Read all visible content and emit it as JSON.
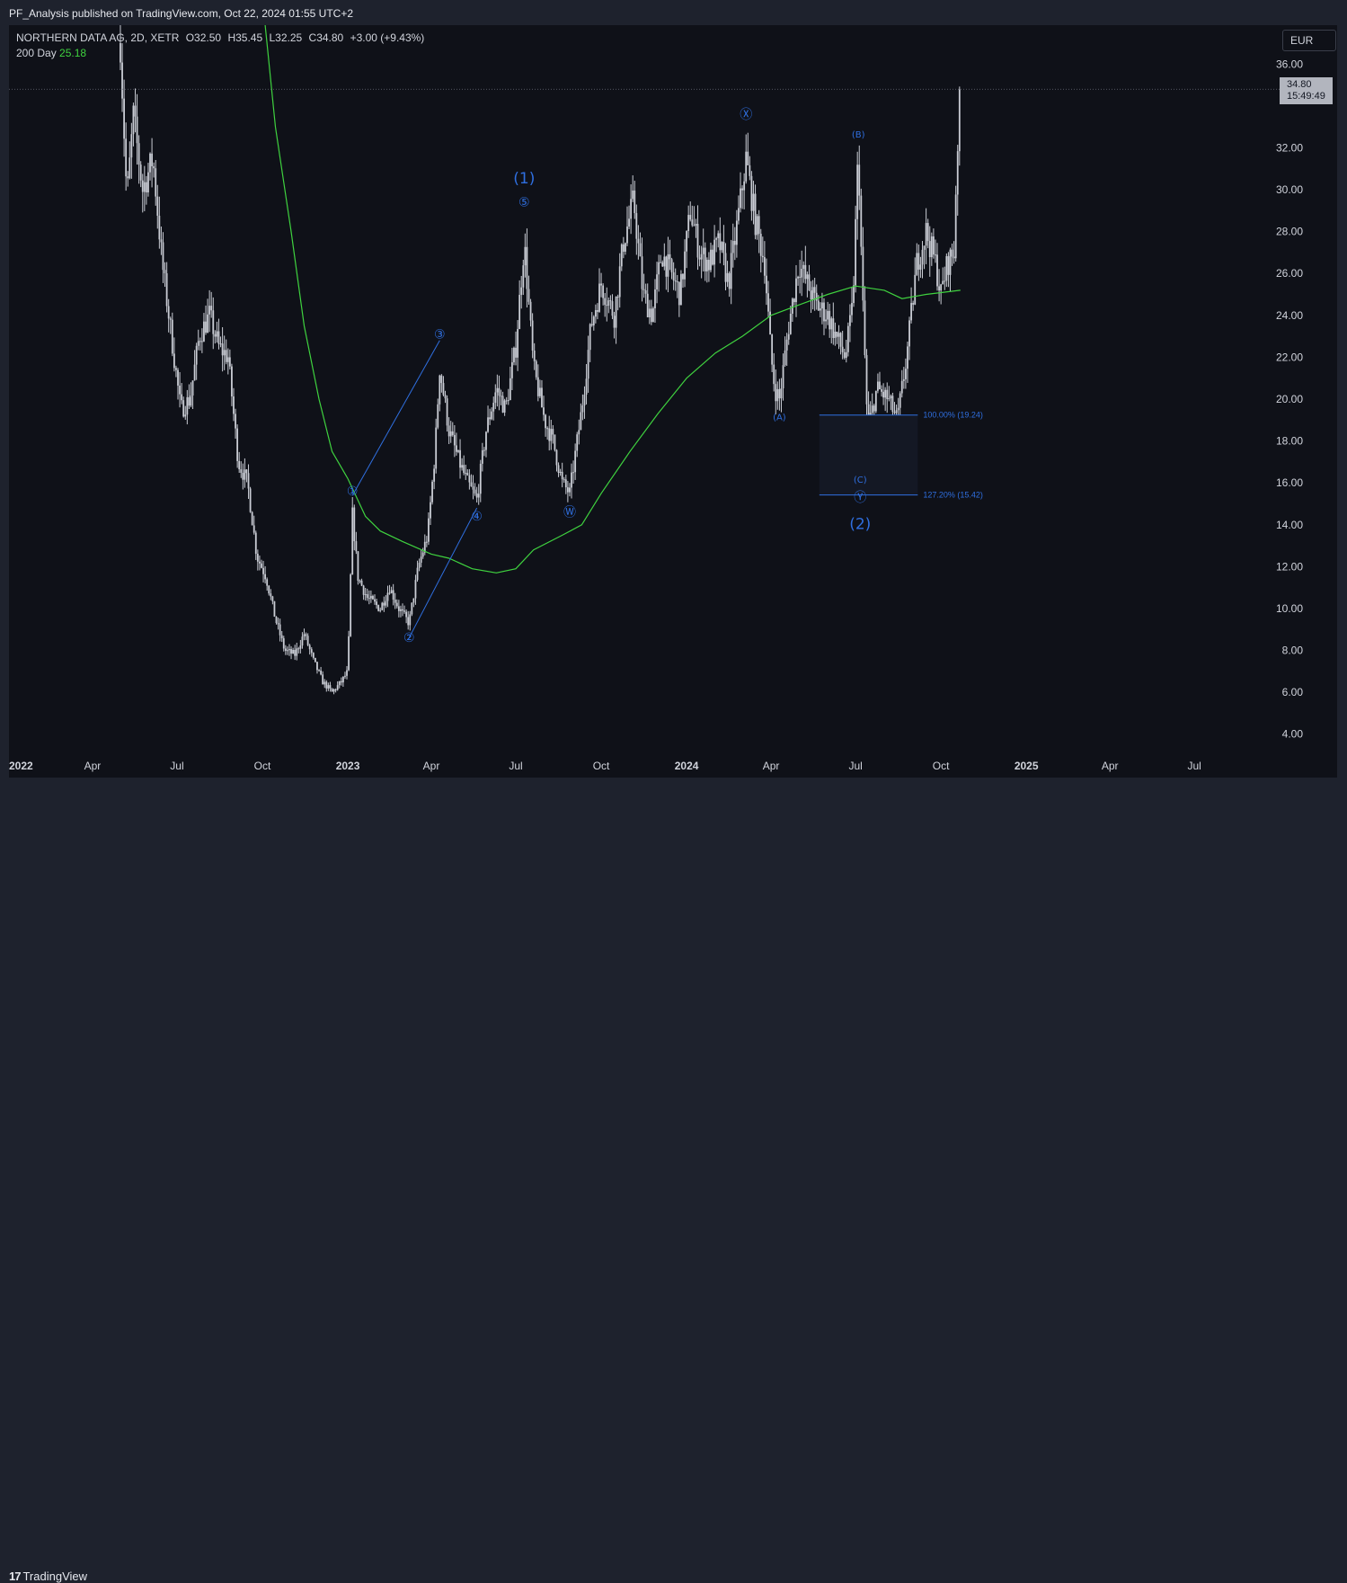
{
  "header": {
    "publisher_line": "PF_Analysis published on TradingView.com, Oct 22, 2024 01:55 UTC+2"
  },
  "legend": {
    "symbol": "NORTHERN DATA AG, 2D, XETR",
    "open": "O32.50",
    "high": "H35.45",
    "low": "L32.25",
    "close": "C34.80",
    "change": "+3.00 (+9.43%)",
    "ma_label": "200 Day",
    "ma_value": "25.18"
  },
  "currency": "EUR",
  "last_price": {
    "price": "34.80",
    "countdown": "15:49:49"
  },
  "footer": {
    "brand": "TradingView",
    "logo_glyph": "17"
  },
  "colors": {
    "background": "#0f1118",
    "candles": "#c9ccd4",
    "ma": "#3fd23f",
    "waves": "#2f6fe0",
    "price_tag": "#b2b5be"
  },
  "chart_data": {
    "type": "candlestick",
    "symbol": "NORTHERN DATA AG",
    "interval": "2D",
    "exchange": "XETR",
    "currency": "EUR",
    "ylim": [
      3,
      37.6
    ],
    "xlim": [
      "2022-01-01",
      "2025-09-25"
    ],
    "y_ticks": [
      "4.00",
      "6.00",
      "8.00",
      "10.00",
      "12.00",
      "14.00",
      "16.00",
      "18.00",
      "20.00",
      "22.00",
      "24.00",
      "26.00",
      "28.00",
      "30.00",
      "32.00",
      "36.00"
    ],
    "x_ticks": [
      {
        "label": "2022",
        "date": "2022-01-01"
      },
      {
        "label": "Apr",
        "date": "2022-04-01"
      },
      {
        "label": "Jul",
        "date": "2022-07-01"
      },
      {
        "label": "Oct",
        "date": "2022-10-01"
      },
      {
        "label": "2023",
        "date": "2023-01-01"
      },
      {
        "label": "Apr",
        "date": "2023-04-01"
      },
      {
        "label": "Jul",
        "date": "2023-07-01"
      },
      {
        "label": "Oct",
        "date": "2023-10-01"
      },
      {
        "label": "2024",
        "date": "2024-01-01"
      },
      {
        "label": "Apr",
        "date": "2024-04-01"
      },
      {
        "label": "Jul",
        "date": "2024-07-01"
      },
      {
        "label": "Oct",
        "date": "2024-10-01"
      },
      {
        "label": "2025",
        "date": "2025-01-01"
      },
      {
        "label": "Apr",
        "date": "2025-04-01"
      },
      {
        "label": "Jul",
        "date": "2025-07-01"
      }
    ],
    "price_path": [
      [
        "2022-05-01",
        37.0
      ],
      [
        "2022-05-08",
        29.5
      ],
      [
        "2022-05-15",
        33.5
      ],
      [
        "2022-05-25",
        30.0
      ],
      [
        "2022-06-05",
        31.5
      ],
      [
        "2022-06-15",
        26.5
      ],
      [
        "2022-06-25",
        23.0
      ],
      [
        "2022-07-05",
        19.5
      ],
      [
        "2022-07-15",
        20.0
      ],
      [
        "2022-07-25",
        23.0
      ],
      [
        "2022-08-05",
        24.0
      ],
      [
        "2022-08-15",
        22.5
      ],
      [
        "2022-08-25",
        22.0
      ],
      [
        "2022-09-05",
        17.0
      ],
      [
        "2022-09-15",
        16.0
      ],
      [
        "2022-09-25",
        12.5
      ],
      [
        "2022-10-05",
        11.5
      ],
      [
        "2022-10-15",
        9.5
      ],
      [
        "2022-10-25",
        8.0
      ],
      [
        "2022-11-05",
        7.8
      ],
      [
        "2022-11-15",
        8.8
      ],
      [
        "2022-11-25",
        7.5
      ],
      [
        "2022-12-05",
        6.5
      ],
      [
        "2022-12-15",
        6.0
      ],
      [
        "2022-12-25",
        6.5
      ],
      [
        "2023-01-01",
        7.0
      ],
      [
        "2023-01-06",
        14.5
      ],
      [
        "2023-01-12",
        11.5
      ],
      [
        "2023-01-22",
        10.5
      ],
      [
        "2023-02-05",
        10.0
      ],
      [
        "2023-02-15",
        11.0
      ],
      [
        "2023-02-25",
        10.0
      ],
      [
        "2023-03-08",
        9.3
      ],
      [
        "2023-03-18",
        12.0
      ],
      [
        "2023-03-28",
        13.5
      ],
      [
        "2023-04-05",
        17.5
      ],
      [
        "2023-04-10",
        21.5
      ],
      [
        "2023-04-20",
        18.5
      ],
      [
        "2023-05-01",
        17.0
      ],
      [
        "2023-05-10",
        16.0
      ],
      [
        "2023-05-20",
        15.2
      ],
      [
        "2023-05-30",
        18.5
      ],
      [
        "2023-06-10",
        20.5
      ],
      [
        "2023-06-20",
        19.5
      ],
      [
        "2023-07-01",
        22.5
      ],
      [
        "2023-07-10",
        27.5
      ],
      [
        "2023-07-20",
        21.5
      ],
      [
        "2023-08-01",
        19.0
      ],
      [
        "2023-08-10",
        18.0
      ],
      [
        "2023-08-20",
        16.0
      ],
      [
        "2023-08-28",
        15.5
      ],
      [
        "2023-09-10",
        19.5
      ],
      [
        "2023-09-20",
        23.5
      ],
      [
        "2023-10-01",
        25.5
      ],
      [
        "2023-10-15",
        24.0
      ],
      [
        "2023-10-25",
        27.5
      ],
      [
        "2023-11-05",
        29.5
      ],
      [
        "2023-11-15",
        25.0
      ],
      [
        "2023-11-25",
        24.0
      ],
      [
        "2023-12-05",
        27.0
      ],
      [
        "2023-12-15",
        26.0
      ],
      [
        "2023-12-25",
        25.0
      ],
      [
        "2024-01-05",
        29.0
      ],
      [
        "2024-01-15",
        27.0
      ],
      [
        "2024-01-25",
        26.5
      ],
      [
        "2024-02-05",
        27.5
      ],
      [
        "2024-02-15",
        25.5
      ],
      [
        "2024-02-25",
        28.5
      ],
      [
        "2024-03-05",
        31.5
      ],
      [
        "2024-03-15",
        28.5
      ],
      [
        "2024-03-25",
        26.5
      ],
      [
        "2024-04-01",
        22.0
      ],
      [
        "2024-04-05",
        20.5
      ],
      [
        "2024-04-10",
        20.0
      ],
      [
        "2024-04-20",
        23.5
      ],
      [
        "2024-05-01",
        26.5
      ],
      [
        "2024-05-10",
        25.5
      ],
      [
        "2024-05-20",
        24.5
      ],
      [
        "2024-06-01",
        24.0
      ],
      [
        "2024-06-10",
        23.0
      ],
      [
        "2024-06-20",
        22.0
      ],
      [
        "2024-06-28",
        24.5
      ],
      [
        "2024-07-04",
        32.0
      ],
      [
        "2024-07-08",
        25.5
      ],
      [
        "2024-07-14",
        18.5
      ],
      [
        "2024-07-24",
        20.5
      ],
      [
        "2024-08-05",
        20.0
      ],
      [
        "2024-08-15",
        19.0
      ],
      [
        "2024-08-25",
        22.0
      ],
      [
        "2024-09-05",
        26.5
      ],
      [
        "2024-09-15",
        28.0
      ],
      [
        "2024-09-25",
        26.5
      ],
      [
        "2024-10-01",
        25.0
      ],
      [
        "2024-10-08",
        26.5
      ],
      [
        "2024-10-15",
        27.0
      ],
      [
        "2024-10-18",
        31.5
      ],
      [
        "2024-10-22",
        34.8
      ]
    ],
    "moving_average": {
      "label": "200 Day",
      "last_value": 25.18,
      "points": [
        [
          "2022-09-30",
          40.0
        ],
        [
          "2022-10-15",
          33.0
        ],
        [
          "2022-11-01",
          28.0
        ],
        [
          "2022-11-15",
          23.5
        ],
        [
          "2022-12-01",
          20.0
        ],
        [
          "2022-12-15",
          17.5
        ],
        [
          "2023-01-01",
          16.2
        ],
        [
          "2023-01-20",
          14.4
        ],
        [
          "2023-02-05",
          13.7
        ],
        [
          "2023-03-01",
          13.2
        ],
        [
          "2023-04-01",
          12.6
        ],
        [
          "2023-04-20",
          12.4
        ],
        [
          "2023-05-15",
          11.9
        ],
        [
          "2023-06-10",
          11.7
        ],
        [
          "2023-07-01",
          11.9
        ],
        [
          "2023-07-20",
          12.8
        ],
        [
          "2023-08-20",
          13.5
        ],
        [
          "2023-09-10",
          14.0
        ],
        [
          "2023-10-01",
          15.5
        ],
        [
          "2023-11-01",
          17.5
        ],
        [
          "2023-12-01",
          19.3
        ],
        [
          "2024-01-01",
          21.0
        ],
        [
          "2024-02-01",
          22.2
        ],
        [
          "2024-03-01",
          23.0
        ],
        [
          "2024-04-01",
          24.0
        ],
        [
          "2024-05-01",
          24.5
        ],
        [
          "2024-06-01",
          25.0
        ],
        [
          "2024-07-01",
          25.4
        ],
        [
          "2024-08-01",
          25.2
        ],
        [
          "2024-08-20",
          24.8
        ],
        [
          "2024-09-15",
          25.0
        ],
        [
          "2024-10-22",
          25.2
        ]
      ]
    },
    "wave_labels": [
      {
        "text": "①",
        "date": "2023-01-06",
        "y": 15.4
      },
      {
        "text": "②",
        "date": "2023-03-08",
        "y": 8.4
      },
      {
        "text": "③",
        "date": "2023-04-10",
        "y": 22.9
      },
      {
        "text": "④",
        "date": "2023-05-20",
        "y": 14.2
      },
      {
        "text": "⑤",
        "date": "2023-07-10",
        "y": 29.2
      },
      {
        "text": "(1)",
        "date": "2023-07-10",
        "y": 30.3
      },
      {
        "text": "Ⓦ",
        "date": "2023-08-28",
        "y": 14.4
      },
      {
        "text": "Ⓧ",
        "date": "2024-03-05",
        "y": 33.4
      },
      {
        "text": "(A)",
        "date": "2024-04-10",
        "y": 19.0
      },
      {
        "text": "(B)",
        "date": "2024-07-04",
        "y": 32.5
      },
      {
        "text": "(C)",
        "date": "2024-07-06",
        "y": 16.0
      },
      {
        "text": "Ⓨ",
        "date": "2024-07-06",
        "y": 15.1
      },
      {
        "text": "(2)",
        "date": "2024-07-06",
        "y": 13.8
      }
    ],
    "wave_lines": [
      {
        "from": [
          "2023-01-06",
          15.4
        ],
        "to": [
          "2023-04-10",
          22.8
        ]
      },
      {
        "from": [
          "2023-03-08",
          8.6
        ],
        "to": [
          "2023-05-20",
          14.8
        ]
      }
    ],
    "fib_levels": [
      {
        "label": "100.00% (19.24)",
        "value": 19.24
      },
      {
        "label": "127.20% (15.42)",
        "value": 15.42
      }
    ],
    "fib_range": {
      "x_start": "2024-05-23",
      "x_end": "2024-09-06"
    }
  }
}
